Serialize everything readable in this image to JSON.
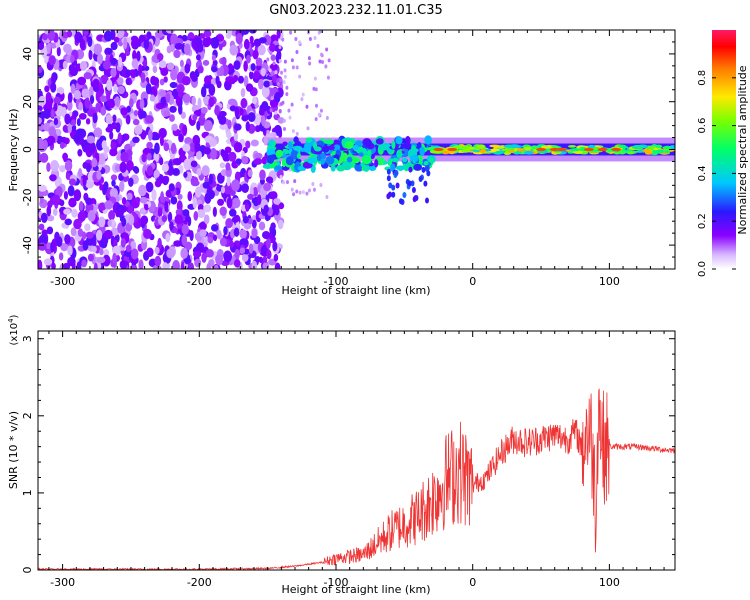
{
  "figure": {
    "title": "GN03.2023.232.11.01.C35"
  },
  "chart_data": [
    {
      "type": "heatmap",
      "title": "GN03.2023.232.11.01.C35",
      "xlabel": "Height of straight line (km)",
      "ylabel": "Frequency (Hz)",
      "xlim": [
        -318,
        148
      ],
      "ylim": [
        -50,
        50
      ],
      "xticks": [
        -300,
        -200,
        -100,
        0,
        100
      ],
      "yticks": [
        -40,
        -20,
        0,
        20,
        40
      ],
      "colorbar": {
        "label": "Normalized spectral amplitude",
        "range": [
          0.0,
          1.0
        ],
        "ticks": [
          0.0,
          0.2,
          0.4,
          0.6,
          0.8
        ],
        "colormap": [
          "#ffffff",
          "#8a00ff",
          "#2a1aff",
          "#00c8ff",
          "#00ff6a",
          "#7aff00",
          "#ffea00",
          "#ff7a00",
          "#ff0000",
          "#ff1a66"
        ]
      },
      "regions": [
        {
          "x_range": [
            -318,
            -140
          ],
          "freq_range": [
            -50,
            50
          ],
          "description_level": 0.1
        },
        {
          "x_range": [
            -140,
            -110
          ],
          "freq_range": [
            -10,
            20
          ],
          "description_level": 0.05
        },
        {
          "x_range": [
            -150,
            148
          ],
          "freq_range": [
            -5,
            5
          ],
          "description_level": 0.35
        }
      ],
      "grid": false
    },
    {
      "type": "line",
      "xlabel": "Height of straight line (km)",
      "ylabel": "SNR (10 * v/v)",
      "y_multiplier": "(x10^4)",
      "xlim": [
        -318,
        148
      ],
      "ylim": [
        0,
        3.1
      ],
      "xticks": [
        -300,
        -200,
        -100,
        0,
        100
      ],
      "yticks": [
        0,
        1,
        2,
        3
      ],
      "color": "#ee3333",
      "x": [
        -318,
        -250,
        -200,
        -150,
        -130,
        -110,
        -100,
        -80,
        -70,
        -60,
        -50,
        -40,
        -30,
        -20,
        -10,
        0,
        10,
        20,
        30,
        40,
        50,
        60,
        70,
        75,
        80,
        85,
        88,
        90,
        92,
        95,
        100,
        110,
        120,
        130,
        140,
        148
      ],
      "y": [
        0.01,
        0.01,
        0.01,
        0.02,
        0.05,
        0.1,
        0.15,
        0.2,
        0.35,
        0.5,
        0.6,
        0.7,
        0.9,
        1.15,
        1.3,
        1.1,
        1.2,
        1.5,
        1.7,
        1.65,
        1.7,
        1.75,
        1.7,
        1.8,
        1.6,
        1.9,
        1.5,
        0.8,
        2.2,
        1.6,
        1.6,
        1.6,
        1.6,
        1.58,
        1.56,
        1.55
      ],
      "grid": false
    }
  ]
}
